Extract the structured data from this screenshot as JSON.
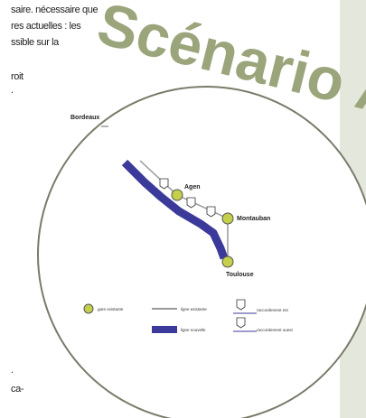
{
  "page": {
    "text_lines": [
      "saire. nécessaire que",
      "res actuelles : les",
      "ssible sur la",
      "roit",
      ".",
      ".",
      "ca-"
    ],
    "heading": "Scénario A",
    "map": {
      "cities": [
        "Bordeaux",
        "Agen",
        "Montauban",
        "Toulouse"
      ],
      "legend": [
        "gare existante",
        "ligne existante",
        "ligne nouvelle",
        "raccordement est",
        "raccordement ouest"
      ]
    }
  }
}
